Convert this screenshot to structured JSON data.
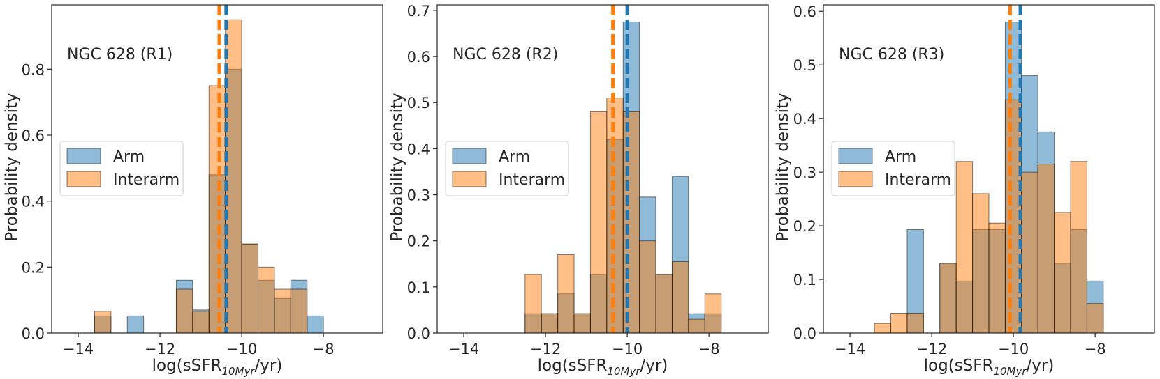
{
  "colors": {
    "arm": "#1f77b4",
    "interarm": "#ff7f0e",
    "axis": "#262626"
  },
  "chart_data": [
    {
      "type": "histogram",
      "title": "NGC 628 (R1)",
      "xlabel_main": "log(sSFR",
      "xlabel_sub": "10Myr",
      "xlabel_tail": "/yr)",
      "ylabel": "Probability density",
      "xlim": [
        -14.65,
        -6.55
      ],
      "ylim": [
        0,
        0.995
      ],
      "xticks": [
        -14,
        -12,
        -10,
        -8
      ],
      "xtick_labels": [
        "−14",
        "−12",
        "−10",
        "−8"
      ],
      "yticks": [
        0,
        0.2,
        0.4,
        0.6,
        0.8
      ],
      "ytick_labels": [
        "0.0",
        "0.2",
        "0.4",
        "0.6",
        "0.8"
      ],
      "legend": {
        "position": "center-left",
        "entries": [
          "Arm",
          "Interarm"
        ]
      },
      "series": [
        {
          "name": "Arm",
          "color_key": "arm",
          "bin_edges": [
            -14.0,
            -13.6,
            -13.2,
            -12.8,
            -12.4,
            -12.0,
            -11.6,
            -11.2,
            -10.8,
            -10.4,
            -10.0,
            -9.6,
            -9.2,
            -8.8,
            -8.4,
            -8.0,
            -7.6,
            -7.2,
            -6.8
          ],
          "values": [
            0,
            0.052,
            0,
            0.052,
            0,
            0,
            0.16,
            0.07,
            0.48,
            0.8,
            0.27,
            0.16,
            0.105,
            0.16,
            0.052,
            0,
            0,
            0
          ],
          "median": -10.38
        },
        {
          "name": "Interarm",
          "color_key": "interarm",
          "bin_edges": [
            -14.0,
            -13.6,
            -13.2,
            -12.8,
            -12.4,
            -12.0,
            -11.6,
            -11.2,
            -10.8,
            -10.4,
            -10.0,
            -9.6,
            -9.2,
            -8.8,
            -8.4
          ],
          "values": [
            0,
            0.066,
            0,
            0,
            0,
            0,
            0.133,
            0.066,
            0.75,
            0.95,
            0.27,
            0.2,
            0.133,
            0.133
          ],
          "median": -10.55
        }
      ]
    },
    {
      "type": "histogram",
      "title": "NGC 628 (R2)",
      "xlabel_main": "log(sSFR",
      "xlabel_sub": "10Myr",
      "xlabel_tail": "/yr)",
      "ylabel": "Probability density",
      "xlim": [
        -14.65,
        -6.55
      ],
      "ylim": [
        0,
        0.712
      ],
      "xticks": [
        -14,
        -12,
        -10,
        -8
      ],
      "xtick_labels": [
        "−14",
        "−12",
        "−10",
        "−8"
      ],
      "yticks": [
        0,
        0.1,
        0.2,
        0.3,
        0.4,
        0.5,
        0.6,
        0.7
      ],
      "ytick_labels": [
        "0.0",
        "0.1",
        "0.2",
        "0.3",
        "0.4",
        "0.5",
        "0.6",
        "0.7"
      ],
      "legend": {
        "position": "center-left",
        "entries": [
          "Arm",
          "Interarm"
        ]
      },
      "series": [
        {
          "name": "Arm",
          "color_key": "arm",
          "bin_edges": [
            -12.5,
            -12.1,
            -11.7,
            -11.3,
            -10.9,
            -10.5,
            -10.1,
            -9.7,
            -9.3,
            -8.9,
            -8.5,
            -8.1,
            -7.7
          ],
          "values": [
            0.042,
            0.042,
            0.085,
            0.042,
            0.127,
            0.42,
            0.675,
            0.295,
            0.127,
            0.34,
            0.042,
            0.042
          ],
          "median": -10.0
        },
        {
          "name": "Interarm",
          "color_key": "interarm",
          "bin_edges": [
            -12.5,
            -12.1,
            -11.7,
            -11.3,
            -10.9,
            -10.5,
            -10.1,
            -9.7,
            -9.3,
            -8.9,
            -8.5,
            -8.1,
            -7.7
          ],
          "values": [
            0.127,
            0.042,
            0.17,
            0.042,
            0.48,
            0.51,
            0.48,
            0.2,
            0.127,
            0.155,
            0.03,
            0.085
          ],
          "median": -10.35
        }
      ]
    },
    {
      "type": "histogram",
      "title": "NGC 628 (R3)",
      "xlabel_main": "log(sSFR",
      "xlabel_sub": "10Myr",
      "xlabel_tail": "/yr)",
      "ylabel": "Probability density",
      "xlim": [
        -14.65,
        -6.55
      ],
      "ylim": [
        0,
        0.612
      ],
      "xticks": [
        -14,
        -12,
        -10,
        -8
      ],
      "xtick_labels": [
        "−14",
        "−12",
        "−10",
        "−8"
      ],
      "yticks": [
        0,
        0.1,
        0.2,
        0.3,
        0.4,
        0.5,
        0.6
      ],
      "ytick_labels": [
        "0.0",
        "0.1",
        "0.2",
        "0.3",
        "0.4",
        "0.5",
        "0.6"
      ],
      "legend": {
        "position": "center-left",
        "entries": [
          "Arm",
          "Interarm"
        ]
      },
      "series": [
        {
          "name": "Arm",
          "color_key": "arm",
          "bin_edges": [
            -12.6,
            -12.2,
            -11.8,
            -11.4,
            -11.0,
            -10.6,
            -10.2,
            -9.8,
            -9.4,
            -9.0,
            -8.6,
            -8.2,
            -7.8
          ],
          "values": [
            0.193,
            0,
            0.13,
            0.097,
            0.193,
            0.193,
            0.58,
            0.48,
            0.375,
            0.13,
            0.193,
            0.097
          ],
          "median": -9.83
        },
        {
          "name": "Interarm",
          "color_key": "interarm",
          "bin_edges": [
            -13.4,
            -13.0,
            -12.6,
            -12.2,
            -11.8,
            -11.4,
            -11.0,
            -10.6,
            -10.2,
            -9.8,
            -9.4,
            -9.0,
            -8.6,
            -8.2,
            -7.8
          ],
          "values": [
            0.018,
            0.037,
            0.037,
            0,
            0.13,
            0.32,
            0.26,
            0.205,
            0.435,
            0.3,
            0.315,
            0.225,
            0.32,
            0.055
          ],
          "median": -10.08
        }
      ]
    }
  ]
}
